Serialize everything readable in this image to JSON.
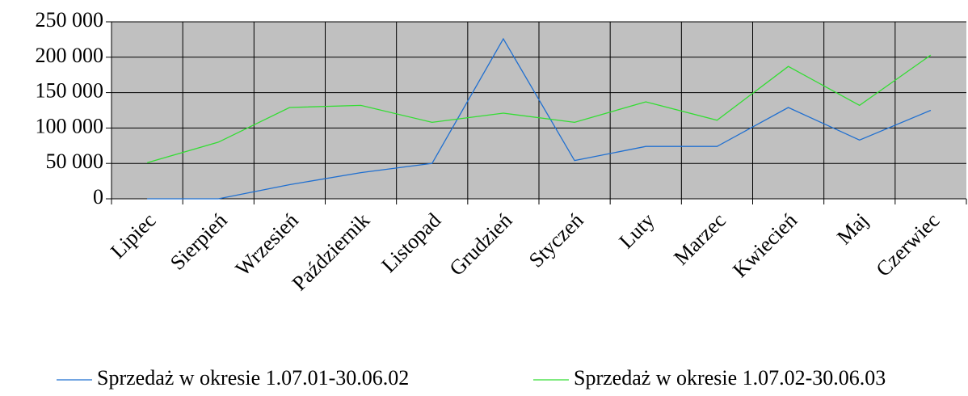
{
  "chart_data": {
    "type": "line",
    "categories": [
      "Lipiec",
      "Sierpień",
      "Wrzesień",
      "Październik",
      "Listopad",
      "Grudzień",
      "Styczeń",
      "Luty",
      "Marzec",
      "Kwiecień",
      "Maj",
      "Czerwiec"
    ],
    "series": [
      {
        "name": "Sprzedaż w okresie 1.07.01-30.06.02",
        "color": "#1f6fd0",
        "values": [
          0,
          0,
          20000,
          37000,
          50000,
          226000,
          54000,
          74000,
          74000,
          129000,
          83000,
          125000
        ]
      },
      {
        "name": "Sprzedaż w okresie 1.07.02-30.06.03",
        "color": "#33dd33",
        "values": [
          51000,
          80000,
          129000,
          132000,
          108000,
          121000,
          108000,
          137000,
          111000,
          187000,
          132000,
          203000
        ]
      }
    ],
    "ylim": [
      0,
      250000
    ],
    "yticks": [
      0,
      {
        "value": 50000,
        "label": "50 000"
      },
      {
        "value": 100000,
        "label": "100 000"
      },
      {
        "value": 150000,
        "label": "150 000"
      },
      {
        "value": 200000,
        "label": "200 000"
      },
      {
        "value": 250000,
        "label": "250 000"
      }
    ],
    "grid": true,
    "legend": "bottom"
  }
}
